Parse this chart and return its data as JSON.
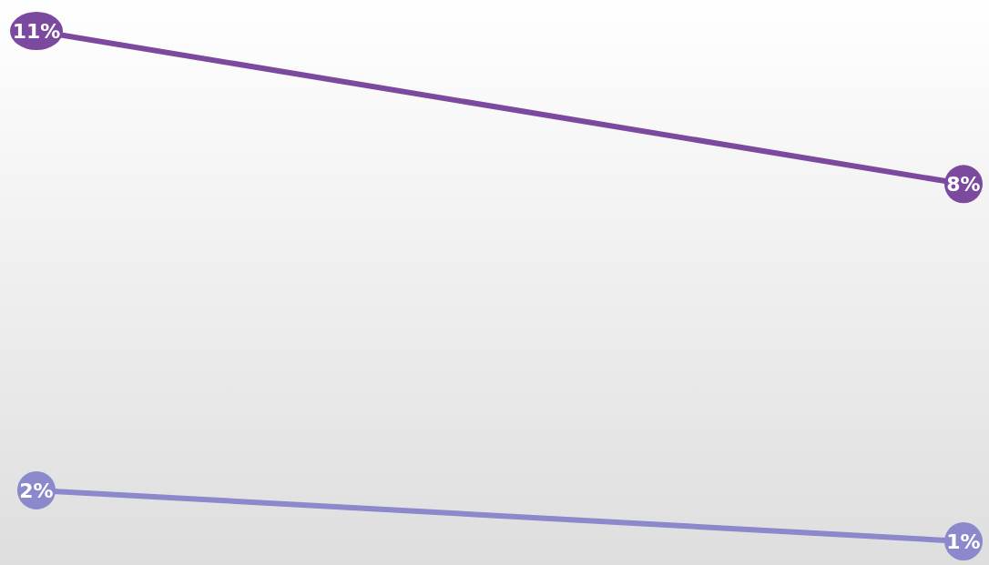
{
  "chart_data": {
    "type": "line",
    "categories": [
      null,
      null
    ],
    "series": [
      {
        "color": "#7b4a9e",
        "values": [
          11,
          8
        ],
        "value_labels": [
          "11%",
          "8%"
        ]
      },
      {
        "color": "#8b88cc",
        "values": [
          2,
          1
        ],
        "value_labels": [
          "2%",
          "1%"
        ]
      }
    ],
    "tick_labels": false,
    "marker": "circle",
    "line_style": "solid",
    "legend": false
  }
}
